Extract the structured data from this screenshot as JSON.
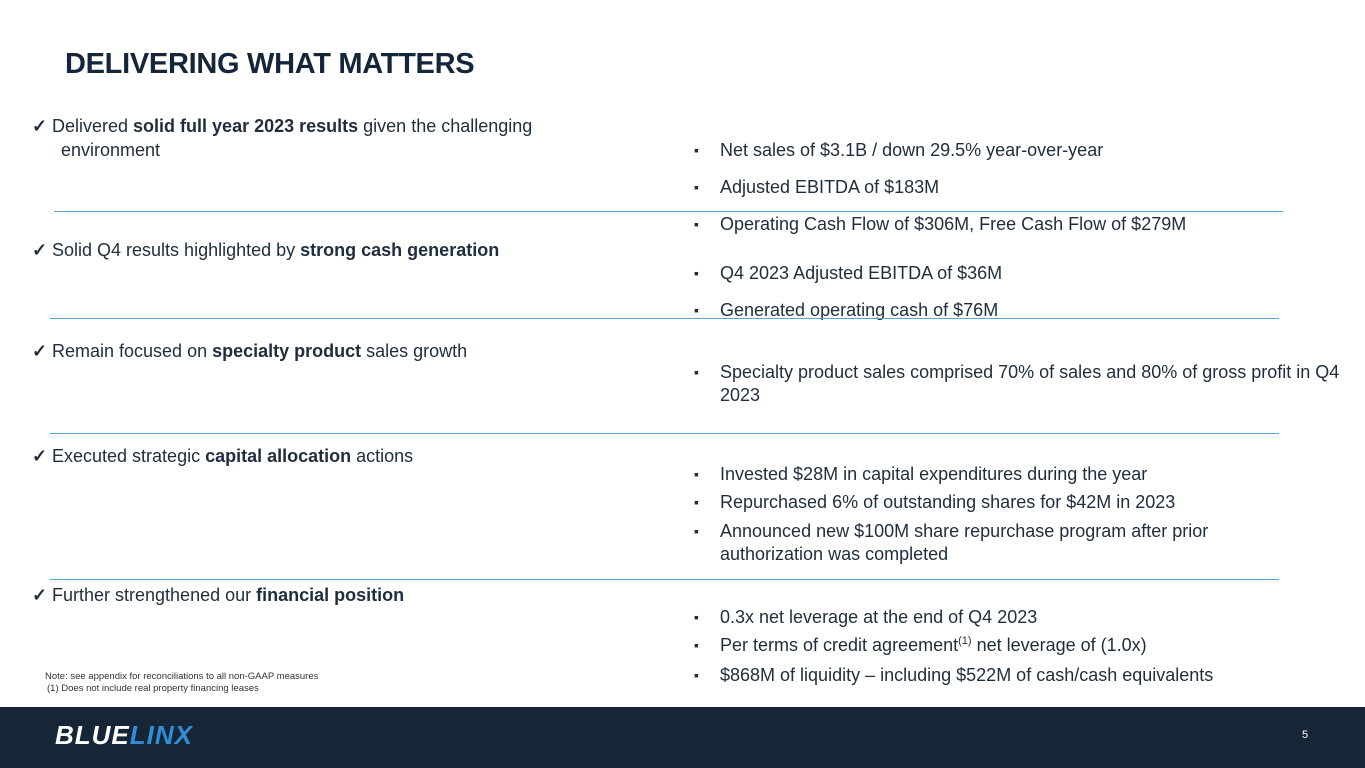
{
  "title": "DELIVERING WHAT MATTERS",
  "check_mark": "✓",
  "bullet_mark": "▪",
  "highlights": [
    {
      "pre": "Delivered ",
      "bold": "solid full year 2023 results",
      "post": " given the challenging",
      "cont": "environment"
    },
    {
      "pre": "Solid Q4 results highlighted by ",
      "bold": "strong cash generation",
      "post": ""
    },
    {
      "pre": "Remain focused on ",
      "bold": "specialty product",
      "post": " sales growth"
    },
    {
      "pre": "Executed strategic ",
      "bold": "capital allocation",
      "post": " actions"
    },
    {
      "pre": "Further strengthened our ",
      "bold": "financial position",
      "post": ""
    }
  ],
  "bullets": {
    "b1": "Net sales of $3.1B / down 29.5% year-over-year",
    "b2": "Adjusted EBITDA of $183M",
    "b3": "Operating Cash Flow of $306M, Free Cash Flow of $279M",
    "b4": "Q4 2023 Adjusted EBITDA of $36M",
    "b5": "Generated operating cash of $76M",
    "b6": "Specialty product sales comprised 70% of sales and 80% of gross profit in Q4 2023",
    "b7": "Invested $28M in capital expenditures during the year",
    "b8": "Repurchased 6% of outstanding shares for $42M in 2023",
    "b9": "Announced new $100M share repurchase program after prior authorization was completed",
    "b10": "0.3x net leverage at the end of Q4 2023",
    "b11_pre": "Per terms of credit agreement",
    "b11_sup": "(1)",
    "b11_post": " net leverage of (1.0x)",
    "b12": "$868M of liquidity – including $522M of cash/cash equivalents"
  },
  "notes": {
    "line1": "Note: see appendix for reconciliations to all non-GAAP measures",
    "line2": "(1) Does not include real property financing leases"
  },
  "footer": {
    "logo_part1": "BLUE",
    "logo_part2": "LINX",
    "page_number": "5"
  },
  "colors": {
    "accent": "#2e8fd8",
    "footer_bg": "#172636",
    "separator": "#5aa6d6"
  }
}
